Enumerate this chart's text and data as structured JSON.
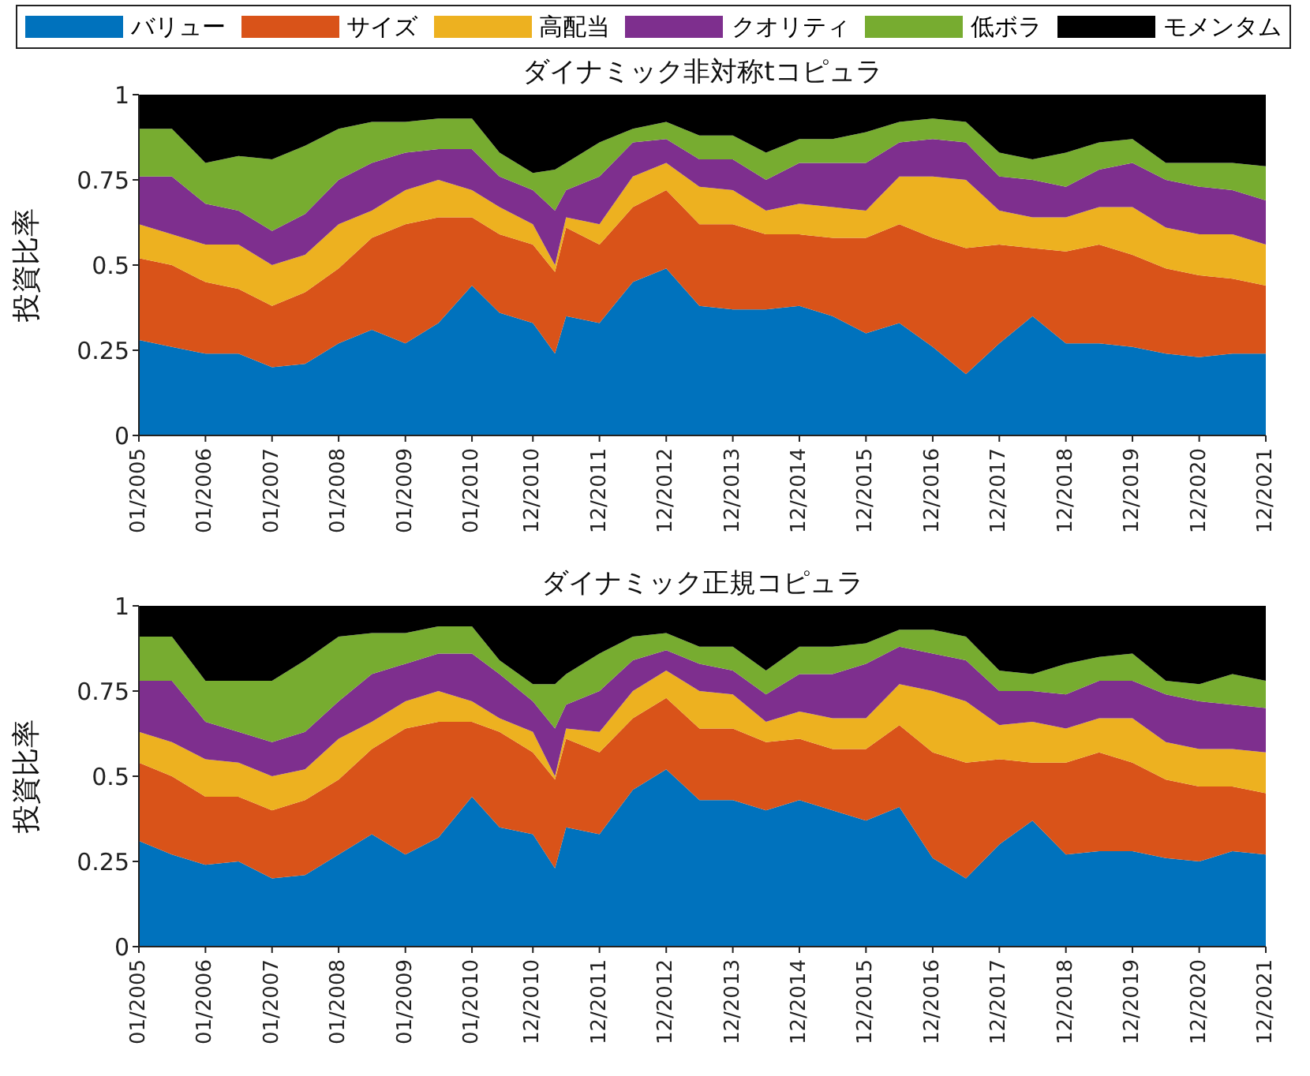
{
  "chart_data": [
    {
      "type": "area",
      "title": "ダイナミック非対称tコピュラ",
      "ylabel": "投資比率",
      "stacked": true,
      "legend": "top",
      "grid": false,
      "x": [
        "2005-01",
        "2005-07",
        "2006-01",
        "2006-07",
        "2007-01",
        "2007-07",
        "2008-01",
        "2008-07",
        "2009-01",
        "2009-07",
        "2010-01",
        "2010-06",
        "2010-12",
        "2011-04",
        "2011-06",
        "2011-12",
        "2012-06",
        "2012-12",
        "2013-06",
        "2013-12",
        "2014-06",
        "2014-12",
        "2015-06",
        "2015-12",
        "2016-06",
        "2016-12",
        "2017-06",
        "2017-12",
        "2018-06",
        "2018-12",
        "2019-06",
        "2019-12",
        "2020-06",
        "2020-12",
        "2021-06",
        "2021-12"
      ],
      "xlim": [
        "2005-01",
        "2021-12"
      ],
      "xticks": [
        {
          "value": "2005-01",
          "label": "01/2005"
        },
        {
          "value": "2006-01",
          "label": "01/2006"
        },
        {
          "value": "2007-01",
          "label": "01/2007"
        },
        {
          "value": "2008-01",
          "label": "01/2008"
        },
        {
          "value": "2009-01",
          "label": "01/2009"
        },
        {
          "value": "2010-01",
          "label": "01/2010"
        },
        {
          "value": "2010-12",
          "label": "12/2010"
        },
        {
          "value": "2011-12",
          "label": "12/2011"
        },
        {
          "value": "2012-12",
          "label": "12/2012"
        },
        {
          "value": "2013-12",
          "label": "12/2013"
        },
        {
          "value": "2014-12",
          "label": "12/2014"
        },
        {
          "value": "2015-12",
          "label": "12/2015"
        },
        {
          "value": "2016-12",
          "label": "12/2016"
        },
        {
          "value": "2017-12",
          "label": "12/2017"
        },
        {
          "value": "2018-12",
          "label": "12/2018"
        },
        {
          "value": "2019-12",
          "label": "12/2019"
        },
        {
          "value": "2020-12",
          "label": "12/2020"
        },
        {
          "value": "2021-12",
          "label": "12/2021"
        }
      ],
      "ylim": [
        0,
        1
      ],
      "yticks": [
        0,
        0.25,
        0.5,
        0.75,
        1
      ],
      "series": [
        {
          "name": "バリュー",
          "color": "#0072bd",
          "values": [
            0.28,
            0.26,
            0.24,
            0.24,
            0.2,
            0.21,
            0.27,
            0.31,
            0.27,
            0.33,
            0.44,
            0.36,
            0.33,
            0.24,
            0.35,
            0.33,
            0.45,
            0.49,
            0.38,
            0.37,
            0.37,
            0.38,
            0.35,
            0.3,
            0.33,
            0.26,
            0.18,
            0.27,
            0.35,
            0.27,
            0.27,
            0.26,
            0.24,
            0.23,
            0.24,
            0.24
          ]
        },
        {
          "name": "サイズ",
          "color": "#d95319",
          "values": [
            0.24,
            0.24,
            0.21,
            0.19,
            0.18,
            0.21,
            0.22,
            0.27,
            0.35,
            0.31,
            0.2,
            0.23,
            0.23,
            0.24,
            0.26,
            0.23,
            0.22,
            0.23,
            0.24,
            0.25,
            0.22,
            0.21,
            0.23,
            0.28,
            0.29,
            0.32,
            0.37,
            0.29,
            0.2,
            0.27,
            0.29,
            0.27,
            0.25,
            0.24,
            0.22,
            0.2
          ]
        },
        {
          "name": "高配当",
          "color": "#edb120",
          "values": [
            0.1,
            0.09,
            0.11,
            0.13,
            0.12,
            0.11,
            0.13,
            0.08,
            0.1,
            0.11,
            0.08,
            0.08,
            0.06,
            0.02,
            0.03,
            0.06,
            0.09,
            0.08,
            0.11,
            0.1,
            0.07,
            0.09,
            0.09,
            0.08,
            0.14,
            0.18,
            0.2,
            0.1,
            0.09,
            0.1,
            0.11,
            0.14,
            0.12,
            0.12,
            0.13,
            0.12
          ]
        },
        {
          "name": "クオリティ",
          "color": "#7e2f8e",
          "values": [
            0.14,
            0.17,
            0.12,
            0.1,
            0.1,
            0.12,
            0.13,
            0.14,
            0.11,
            0.09,
            0.12,
            0.09,
            0.1,
            0.16,
            0.08,
            0.14,
            0.1,
            0.07,
            0.08,
            0.09,
            0.09,
            0.12,
            0.13,
            0.14,
            0.1,
            0.11,
            0.11,
            0.1,
            0.11,
            0.09,
            0.11,
            0.13,
            0.14,
            0.14,
            0.13,
            0.13
          ]
        },
        {
          "name": "低ボラ",
          "color": "#77ac30",
          "values": [
            0.14,
            0.14,
            0.12,
            0.16,
            0.21,
            0.2,
            0.15,
            0.12,
            0.09,
            0.09,
            0.09,
            0.07,
            0.05,
            0.12,
            0.08,
            0.1,
            0.04,
            0.05,
            0.07,
            0.07,
            0.08,
            0.07,
            0.07,
            0.09,
            0.06,
            0.06,
            0.06,
            0.07,
            0.06,
            0.1,
            0.08,
            0.07,
            0.05,
            0.07,
            0.08,
            0.1
          ]
        },
        {
          "name": "モメンタム",
          "color": "#000000",
          "values": [
            0.1,
            0.1,
            0.2,
            0.18,
            0.19,
            0.15,
            0.1,
            0.08,
            0.08,
            0.07,
            0.07,
            0.17,
            0.23,
            0.22,
            0.2,
            0.14,
            0.1,
            0.08,
            0.12,
            0.12,
            0.17,
            0.13,
            0.13,
            0.11,
            0.08,
            0.07,
            0.08,
            0.17,
            0.19,
            0.17,
            0.14,
            0.13,
            0.2,
            0.2,
            0.2,
            0.21
          ]
        }
      ]
    },
    {
      "type": "area",
      "title": "ダイナミック正規コピュラ",
      "ylabel": "投資比率",
      "stacked": true,
      "grid": false,
      "x": [
        "2005-01",
        "2005-07",
        "2006-01",
        "2006-07",
        "2007-01",
        "2007-07",
        "2008-01",
        "2008-07",
        "2009-01",
        "2009-07",
        "2010-01",
        "2010-06",
        "2010-12",
        "2011-04",
        "2011-06",
        "2011-12",
        "2012-06",
        "2012-12",
        "2013-06",
        "2013-12",
        "2014-06",
        "2014-12",
        "2015-06",
        "2015-12",
        "2016-06",
        "2016-12",
        "2017-06",
        "2017-12",
        "2018-06",
        "2018-12",
        "2019-06",
        "2019-12",
        "2020-06",
        "2020-12",
        "2021-06",
        "2021-12"
      ],
      "xlim": [
        "2005-01",
        "2021-12"
      ],
      "xticks": [
        {
          "value": "2005-01",
          "label": "01/2005"
        },
        {
          "value": "2006-01",
          "label": "01/2006"
        },
        {
          "value": "2007-01",
          "label": "01/2007"
        },
        {
          "value": "2008-01",
          "label": "01/2008"
        },
        {
          "value": "2009-01",
          "label": "01/2009"
        },
        {
          "value": "2010-01",
          "label": "01/2010"
        },
        {
          "value": "2010-12",
          "label": "12/2010"
        },
        {
          "value": "2011-12",
          "label": "12/2011"
        },
        {
          "value": "2012-12",
          "label": "12/2012"
        },
        {
          "value": "2013-12",
          "label": "12/2013"
        },
        {
          "value": "2014-12",
          "label": "12/2014"
        },
        {
          "value": "2015-12",
          "label": "12/2015"
        },
        {
          "value": "2016-12",
          "label": "12/2016"
        },
        {
          "value": "2017-12",
          "label": "12/2017"
        },
        {
          "value": "2018-12",
          "label": "12/2018"
        },
        {
          "value": "2019-12",
          "label": "12/2019"
        },
        {
          "value": "2020-12",
          "label": "12/2020"
        },
        {
          "value": "2021-12",
          "label": "12/2021"
        }
      ],
      "ylim": [
        0,
        1
      ],
      "yticks": [
        0,
        0.25,
        0.5,
        0.75,
        1
      ],
      "series": [
        {
          "color": "#0072bd",
          "values": [
            0.31,
            0.27,
            0.24,
            0.25,
            0.2,
            0.21,
            0.27,
            0.33,
            0.27,
            0.32,
            0.44,
            0.35,
            0.33,
            0.23,
            0.35,
            0.33,
            0.46,
            0.52,
            0.43,
            0.43,
            0.4,
            0.43,
            0.4,
            0.37,
            0.41,
            0.26,
            0.2,
            0.3,
            0.37,
            0.27,
            0.28,
            0.28,
            0.26,
            0.25,
            0.28,
            0.27
          ]
        },
        {
          "color": "#d95319",
          "values": [
            0.23,
            0.23,
            0.2,
            0.19,
            0.2,
            0.22,
            0.22,
            0.25,
            0.37,
            0.34,
            0.22,
            0.28,
            0.24,
            0.26,
            0.26,
            0.24,
            0.21,
            0.21,
            0.21,
            0.21,
            0.2,
            0.18,
            0.18,
            0.21,
            0.24,
            0.31,
            0.34,
            0.25,
            0.17,
            0.27,
            0.29,
            0.26,
            0.23,
            0.22,
            0.19,
            0.18
          ]
        },
        {
          "color": "#edb120",
          "values": [
            0.09,
            0.1,
            0.11,
            0.1,
            0.1,
            0.09,
            0.12,
            0.08,
            0.08,
            0.09,
            0.06,
            0.04,
            0.06,
            0.01,
            0.03,
            0.06,
            0.08,
            0.08,
            0.11,
            0.1,
            0.06,
            0.08,
            0.09,
            0.09,
            0.12,
            0.18,
            0.18,
            0.1,
            0.12,
            0.1,
            0.1,
            0.13,
            0.11,
            0.11,
            0.11,
            0.12
          ]
        },
        {
          "color": "#7e2f8e",
          "values": [
            0.15,
            0.18,
            0.11,
            0.09,
            0.1,
            0.11,
            0.11,
            0.14,
            0.11,
            0.11,
            0.14,
            0.13,
            0.09,
            0.14,
            0.07,
            0.12,
            0.09,
            0.06,
            0.08,
            0.07,
            0.08,
            0.11,
            0.13,
            0.16,
            0.11,
            0.11,
            0.12,
            0.1,
            0.09,
            0.1,
            0.11,
            0.11,
            0.14,
            0.14,
            0.13,
            0.13
          ]
        },
        {
          "color": "#77ac30",
          "values": [
            0.13,
            0.13,
            0.12,
            0.15,
            0.18,
            0.21,
            0.19,
            0.12,
            0.09,
            0.08,
            0.08,
            0.04,
            0.05,
            0.13,
            0.09,
            0.11,
            0.07,
            0.05,
            0.05,
            0.07,
            0.07,
            0.08,
            0.08,
            0.06,
            0.05,
            0.07,
            0.07,
            0.06,
            0.05,
            0.09,
            0.07,
            0.08,
            0.04,
            0.05,
            0.09,
            0.08
          ]
        },
        {
          "color": "#000000",
          "values": [
            0.09,
            0.09,
            0.22,
            0.22,
            0.22,
            0.16,
            0.09,
            0.08,
            0.08,
            0.06,
            0.06,
            0.16,
            0.23,
            0.23,
            0.2,
            0.14,
            0.09,
            0.08,
            0.12,
            0.12,
            0.19,
            0.12,
            0.12,
            0.11,
            0.07,
            0.07,
            0.09,
            0.19,
            0.2,
            0.17,
            0.15,
            0.14,
            0.22,
            0.23,
            0.2,
            0.22
          ]
        }
      ]
    }
  ]
}
